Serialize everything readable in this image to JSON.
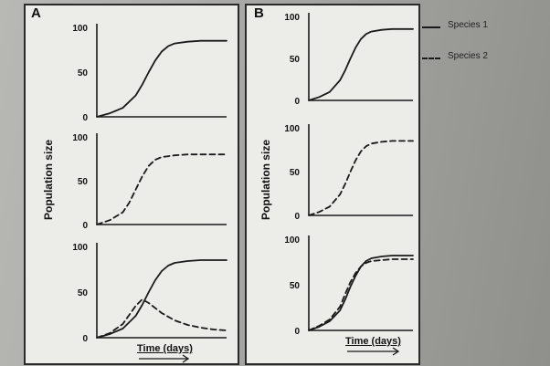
{
  "figure": {
    "panel_labels": [
      "A",
      "B"
    ],
    "ylabel": "Population size",
    "xlabel": "Time (days)",
    "legend": [
      {
        "label": "Species 1",
        "style": "solid"
      },
      {
        "label": "Species 2",
        "style": "dashed"
      }
    ]
  },
  "colors": {
    "line": "#1a1a1a",
    "axis": "#1a1a1a",
    "panel_bg": "#ecece8"
  },
  "chart_data": [
    {
      "type": "line",
      "panel": "A",
      "row": 1,
      "ylim": [
        0,
        100
      ],
      "yticks": [
        0,
        50,
        100
      ],
      "xlim": [
        0,
        10
      ],
      "series": [
        {
          "style": "solid",
          "x": [
            0,
            1,
            2,
            3,
            3.5,
            4,
            4.5,
            5,
            5.5,
            6,
            7,
            8,
            10
          ],
          "y": [
            0,
            4,
            10,
            24,
            36,
            50,
            63,
            73,
            79,
            82,
            84,
            85,
            85
          ]
        }
      ]
    },
    {
      "type": "line",
      "panel": "A",
      "row": 2,
      "ylim": [
        0,
        100
      ],
      "yticks": [
        0,
        50,
        100
      ],
      "xlim": [
        0,
        10
      ],
      "series": [
        {
          "style": "dashed",
          "x": [
            0,
            1,
            2,
            2.5,
            3,
            3.5,
            4,
            4.5,
            5,
            6,
            7,
            8,
            10
          ],
          "y": [
            0,
            5,
            14,
            25,
            40,
            55,
            67,
            74,
            77,
            79,
            80,
            80,
            80
          ]
        }
      ]
    },
    {
      "type": "line",
      "panel": "A",
      "row": 3,
      "ylim": [
        0,
        100
      ],
      "yticks": [
        0,
        50,
        100
      ],
      "xlim": [
        0,
        10
      ],
      "series": [
        {
          "style": "solid",
          "x": [
            0,
            1,
            2,
            3,
            3.5,
            4,
            4.5,
            5,
            5.5,
            6,
            7,
            8,
            10
          ],
          "y": [
            0,
            4,
            10,
            24,
            36,
            50,
            63,
            73,
            79,
            82,
            84,
            85,
            85
          ]
        },
        {
          "style": "dashed",
          "x": [
            0,
            1,
            2,
            2.5,
            3,
            3.5,
            4,
            5,
            6,
            7,
            8,
            9,
            10
          ],
          "y": [
            0,
            5,
            15,
            25,
            35,
            42,
            38,
            27,
            19,
            14,
            11,
            9,
            8
          ]
        }
      ]
    },
    {
      "type": "line",
      "panel": "B",
      "row": 1,
      "ylim": [
        0,
        100
      ],
      "yticks": [
        0,
        50,
        100
      ],
      "xlim": [
        0,
        10
      ],
      "series": [
        {
          "style": "solid",
          "x": [
            0,
            1,
            2,
            3,
            3.5,
            4,
            4.5,
            5,
            5.5,
            6,
            7,
            8,
            10
          ],
          "y": [
            0,
            4,
            10,
            24,
            36,
            50,
            63,
            73,
            79,
            82,
            84,
            85,
            85
          ]
        }
      ]
    },
    {
      "type": "line",
      "panel": "B",
      "row": 2,
      "ylim": [
        0,
        100
      ],
      "yticks": [
        0,
        50,
        100
      ],
      "xlim": [
        0,
        10
      ],
      "series": [
        {
          "style": "dashed",
          "x": [
            0,
            1,
            2,
            3,
            3.5,
            4,
            4.5,
            5,
            5.5,
            6,
            7,
            8,
            10
          ],
          "y": [
            0,
            4,
            10,
            24,
            36,
            50,
            63,
            73,
            79,
            82,
            84,
            85,
            85
          ]
        }
      ]
    },
    {
      "type": "line",
      "panel": "B",
      "row": 3,
      "ylim": [
        0,
        100
      ],
      "yticks": [
        0,
        50,
        100
      ],
      "xlim": [
        0,
        10
      ],
      "series": [
        {
          "style": "solid",
          "x": [
            0,
            1,
            2,
            3,
            3.5,
            4,
            4.5,
            5,
            5.5,
            6,
            7,
            8,
            10
          ],
          "y": [
            0,
            4,
            10,
            22,
            34,
            48,
            60,
            70,
            76,
            79,
            81,
            82,
            82
          ]
        },
        {
          "style": "dashed",
          "x": [
            0,
            1,
            2,
            3,
            3.5,
            4,
            4.5,
            5,
            5.5,
            6,
            7,
            8,
            10
          ],
          "y": [
            0,
            5,
            12,
            26,
            40,
            53,
            63,
            70,
            74,
            76,
            77,
            78,
            78
          ]
        }
      ]
    }
  ]
}
